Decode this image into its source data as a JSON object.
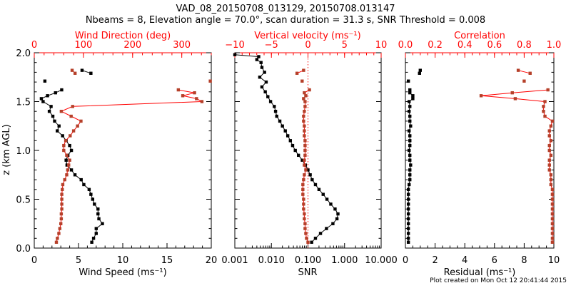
{
  "title_line1": "VAD_08_20150708_013129, 20150708.013147",
  "title_line2": "Nbeams = 8, Elevation angle = 70.0°, scan duration = 31.3 s, SNR Threshold = 0.008",
  "footer": "Plot created on Mon Oct 12 20:41:44 2015",
  "colors": {
    "primary": "#000000",
    "secondary_axis": "#ff0000",
    "secondary_marker": "#b5402a"
  },
  "chart_data": [
    {
      "type": "line",
      "panel": "wind",
      "ylabel": "z (km AGL)",
      "ylim": [
        0,
        2
      ],
      "yticks": [
        "0.0",
        "0.5",
        "1.0",
        "1.5",
        "2.0"
      ],
      "xlabel": "Wind Speed (ms⁻¹)",
      "xlim": [
        0,
        20
      ],
      "xticks": [
        "0",
        "5",
        "10",
        "15",
        "20"
      ],
      "top_label": "Wind Direction (deg)",
      "top_lim": [
        0,
        360
      ],
      "top_ticks": [
        "0",
        "100",
        "200",
        "300"
      ],
      "z": [
        0.06,
        0.1,
        0.15,
        0.2,
        0.25,
        0.3,
        0.35,
        0.4,
        0.45,
        0.5,
        0.55,
        0.6,
        0.65,
        0.7,
        0.75,
        0.8,
        0.85,
        0.9,
        0.95,
        1.0,
        1.05,
        1.1,
        1.15,
        1.2,
        1.25,
        1.3,
        1.35,
        1.4,
        1.45,
        1.5,
        1.53,
        1.56,
        1.59,
        1.62,
        1.71,
        1.79,
        1.82
      ],
      "series": [
        {
          "name": "Wind Speed",
          "axis": "bottom",
          "values": [
            6.5,
            6.7,
            7.0,
            7.0,
            7.7,
            7.3,
            7.2,
            7.2,
            6.8,
            6.6,
            6.4,
            6.2,
            5.6,
            5.3,
            4.6,
            4.2,
            3.7,
            3.6,
            3.8,
            4.2,
            4.0,
            3.6,
            3.2,
            2.6,
            2.8,
            2.3,
            2.1,
            1.7,
            1.9,
            1.0,
            0.8,
            1.5,
            2.4,
            3.1,
            1.2,
            6.4,
            5.4
          ]
        },
        {
          "name": "Wind Direction",
          "axis": "top",
          "values": [
            45,
            47,
            50,
            52,
            54,
            55,
            55,
            56,
            56,
            56,
            56,
            57,
            58,
            62,
            66,
            68,
            70,
            72,
            66,
            60,
            60,
            64,
            73,
            80,
            88,
            95,
            75,
            55,
            78,
            341,
            330,
            302,
            326,
            293,
            358,
            83,
            77
          ]
        }
      ]
    },
    {
      "type": "line",
      "panel": "snr",
      "ylim": [
        0,
        2
      ],
      "xlabel": "SNR",
      "xscale": "log",
      "xlim": [
        0.001,
        10
      ],
      "xticks": [
        "0.001",
        "0.010",
        "0.100",
        "1.000",
        "10.000"
      ],
      "top_label": "Vertical velocity (ms⁻¹)",
      "top_lim": [
        -10,
        10
      ],
      "top_ticks": [
        "−10",
        "−5",
        "0",
        "5",
        "10"
      ],
      "series": [
        {
          "name": "SNR",
          "axis": "bottom",
          "z": [
            0.06,
            0.1,
            0.15,
            0.2,
            0.25,
            0.3,
            0.35,
            0.4,
            0.45,
            0.5,
            0.55,
            0.6,
            0.65,
            0.7,
            0.75,
            0.8,
            0.85,
            0.9,
            0.95,
            1.0,
            1.05,
            1.1,
            1.15,
            1.2,
            1.25,
            1.3,
            1.35,
            1.4,
            1.45,
            1.5,
            1.55,
            1.6,
            1.65,
            1.7,
            1.75,
            1.8,
            1.85,
            1.9,
            1.93,
            1.96,
            1.98
          ],
          "values": [
            0.126,
            0.16,
            0.22,
            0.32,
            0.48,
            0.62,
            0.66,
            0.55,
            0.42,
            0.33,
            0.26,
            0.2,
            0.16,
            0.13,
            0.115,
            0.1,
            0.085,
            0.07,
            0.055,
            0.045,
            0.038,
            0.033,
            0.028,
            0.024,
            0.02,
            0.017,
            0.014,
            0.013,
            0.012,
            0.0095,
            0.008,
            0.0068,
            0.0055,
            0.0072,
            0.0048,
            0.0065,
            0.0055,
            0.0052,
            0.004,
            0.0045,
            0.001
          ]
        },
        {
          "name": "Vertical velocity",
          "axis": "top",
          "z": [
            0.06,
            0.1,
            0.15,
            0.2,
            0.25,
            0.3,
            0.35,
            0.4,
            0.45,
            0.5,
            0.55,
            0.6,
            0.65,
            0.7,
            0.75,
            0.8,
            0.85,
            0.9,
            0.95,
            1.0,
            1.05,
            1.1,
            1.15,
            1.2,
            1.25,
            1.3,
            1.35,
            1.4,
            1.45,
            1.5,
            1.53,
            1.56,
            1.59,
            1.62,
            1.71,
            1.79,
            1.82
          ],
          "values": [
            0.0,
            -0.2,
            -0.3,
            -0.4,
            -0.4,
            -0.5,
            -0.5,
            -0.6,
            -0.6,
            -0.6,
            -0.7,
            -0.7,
            -0.7,
            -0.6,
            -0.5,
            -0.3,
            -0.5,
            -0.5,
            -0.4,
            -0.4,
            -0.4,
            -0.4,
            -0.5,
            -0.5,
            -0.5,
            -0.6,
            -0.6,
            -0.5,
            -0.4,
            -0.4,
            -0.6,
            -0.3,
            -0.5,
            0.2,
            -0.8,
            -1.5,
            -0.6
          ]
        }
      ],
      "reference_line": {
        "axis": "top",
        "value": 0,
        "style": "dotted"
      }
    },
    {
      "type": "line",
      "panel": "residual",
      "ylim": [
        0,
        2
      ],
      "xlabel": "Residual (ms⁻¹)",
      "xlim": [
        0,
        10
      ],
      "xticks": [
        "0",
        "2",
        "4",
        "6",
        "8",
        "10"
      ],
      "top_label": "Correlation",
      "top_lim": [
        0,
        1
      ],
      "top_ticks": [
        "0.0",
        "0.2",
        "0.4",
        "0.6",
        "0.8",
        "1.0"
      ],
      "z": [
        0.06,
        0.1,
        0.15,
        0.2,
        0.25,
        0.3,
        0.35,
        0.4,
        0.45,
        0.5,
        0.55,
        0.6,
        0.65,
        0.7,
        0.75,
        0.8,
        0.85,
        0.9,
        0.95,
        1.0,
        1.05,
        1.1,
        1.15,
        1.2,
        1.25,
        1.3,
        1.35,
        1.4,
        1.45,
        1.5,
        1.53,
        1.56,
        1.59,
        1.62,
        1.71,
        1.79,
        1.82
      ],
      "series": [
        {
          "name": "Residual",
          "axis": "bottom",
          "values": [
            0.2,
            0.2,
            0.2,
            0.2,
            0.2,
            0.2,
            0.2,
            0.2,
            0.2,
            0.2,
            0.2,
            0.2,
            0.25,
            0.3,
            0.3,
            0.3,
            0.35,
            0.3,
            0.3,
            0.25,
            0.3,
            0.3,
            0.3,
            0.25,
            0.35,
            0.3,
            0.3,
            0.25,
            0.3,
            0.25,
            0.5,
            0.5,
            0.3,
            0.3,
            0.2,
            0.95,
            1.0
          ]
        },
        {
          "name": "Correlation",
          "axis": "top",
          "values": [
            0.99,
            0.99,
            0.99,
            0.99,
            0.99,
            0.99,
            0.99,
            0.99,
            0.99,
            0.99,
            0.99,
            0.99,
            0.98,
            0.98,
            0.98,
            0.97,
            0.97,
            0.97,
            0.98,
            0.97,
            0.97,
            0.98,
            0.97,
            0.97,
            0.98,
            0.99,
            0.94,
            0.93,
            0.93,
            0.94,
            0.74,
            0.51,
            0.72,
            0.96,
            0.8,
            0.84,
            0.76
          ]
        }
      ]
    }
  ]
}
